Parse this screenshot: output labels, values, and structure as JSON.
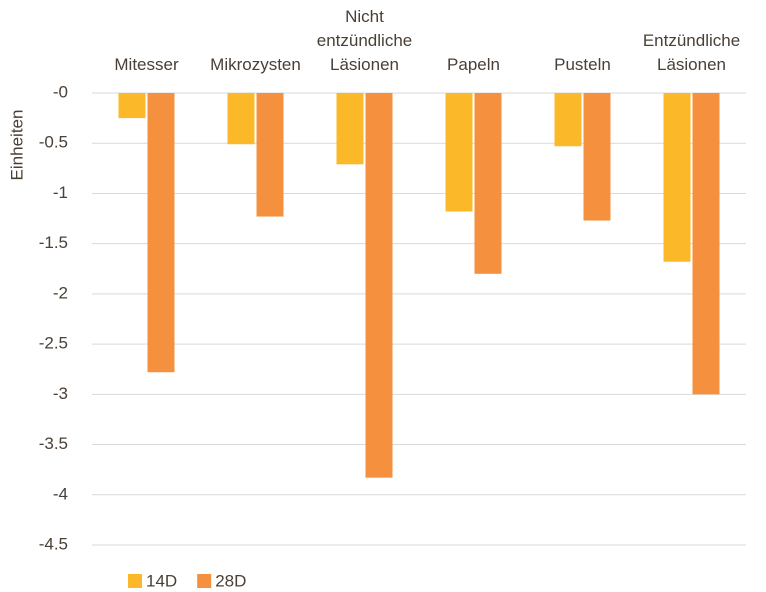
{
  "chart_data": {
    "type": "bar",
    "y_label": "Einheiten",
    "categories": [
      "Mitesser",
      "Mikrozysten",
      "Nicht\nentzündliche\nLäsionen",
      "Papeln",
      "Pusteln",
      "Entzündliche\nLäsionen"
    ],
    "series": [
      {
        "name": "14D",
        "color": "#fbb829",
        "values": [
          -0.25,
          -0.51,
          -0.71,
          -1.18,
          -0.53,
          -1.68
        ]
      },
      {
        "name": "28D",
        "color": "#f5913e",
        "values": [
          -2.78,
          -1.23,
          -3.83,
          -1.8,
          -1.27,
          -3.0
        ]
      }
    ],
    "ylim": [
      -4.5,
      0
    ],
    "yticks": [
      {
        "value": 0,
        "label": "-0"
      },
      -0.5,
      -1,
      -1.5,
      -2,
      -2.5,
      -3,
      -3.5,
      -4,
      -4.5
    ],
    "grid": true,
    "legend": "bottom"
  }
}
